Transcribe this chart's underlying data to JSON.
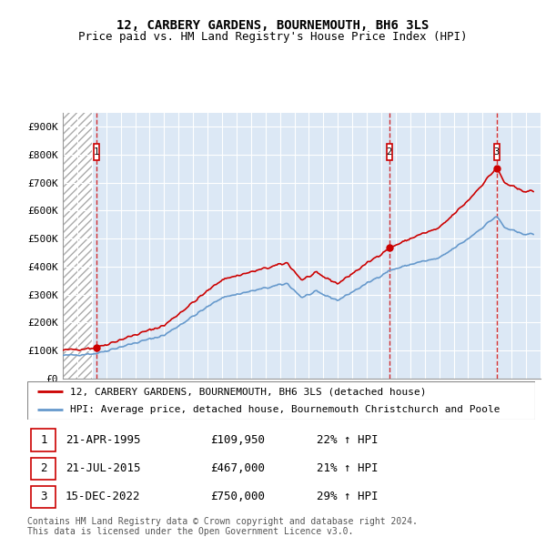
{
  "title": "12, CARBERY GARDENS, BOURNEMOUTH, BH6 3LS",
  "subtitle": "Price paid vs. HM Land Registry's House Price Index (HPI)",
  "ylabel_ticks": [
    "£0",
    "£100K",
    "£200K",
    "£300K",
    "£400K",
    "£500K",
    "£600K",
    "£700K",
    "£800K",
    "£900K"
  ],
  "ytick_values": [
    0,
    100000,
    200000,
    300000,
    400000,
    500000,
    600000,
    700000,
    800000,
    900000
  ],
  "ylim": [
    0,
    950000
  ],
  "xlim_start": 1993.0,
  "xlim_end": 2026.0,
  "sale_dates": [
    1995.31,
    2015.55,
    2022.96
  ],
  "sale_prices": [
    109950,
    467000,
    750000
  ],
  "sale_labels": [
    "1",
    "2",
    "3"
  ],
  "hpi_color": "#6699cc",
  "price_color": "#cc0000",
  "dashed_color": "#cc0000",
  "legend_label_price": "12, CARBERY GARDENS, BOURNEMOUTH, BH6 3LS (detached house)",
  "legend_label_hpi": "HPI: Average price, detached house, Bournemouth Christchurch and Poole",
  "table_data": [
    {
      "num": "1",
      "date": "21-APR-1995",
      "price": "£109,950",
      "change": "22% ↑ HPI"
    },
    {
      "num": "2",
      "date": "21-JUL-2015",
      "price": "£467,000",
      "change": "21% ↑ HPI"
    },
    {
      "num": "3",
      "date": "15-DEC-2022",
      "price": "£750,000",
      "change": "29% ↑ HPI"
    }
  ],
  "footer": "Contains HM Land Registry data © Crown copyright and database right 2024.\nThis data is licensed under the Open Government Licence v3.0.",
  "title_fontsize": 10,
  "subtitle_fontsize": 9,
  "tick_fontsize": 8,
  "legend_fontsize": 8,
  "table_fontsize": 9,
  "footer_fontsize": 7
}
